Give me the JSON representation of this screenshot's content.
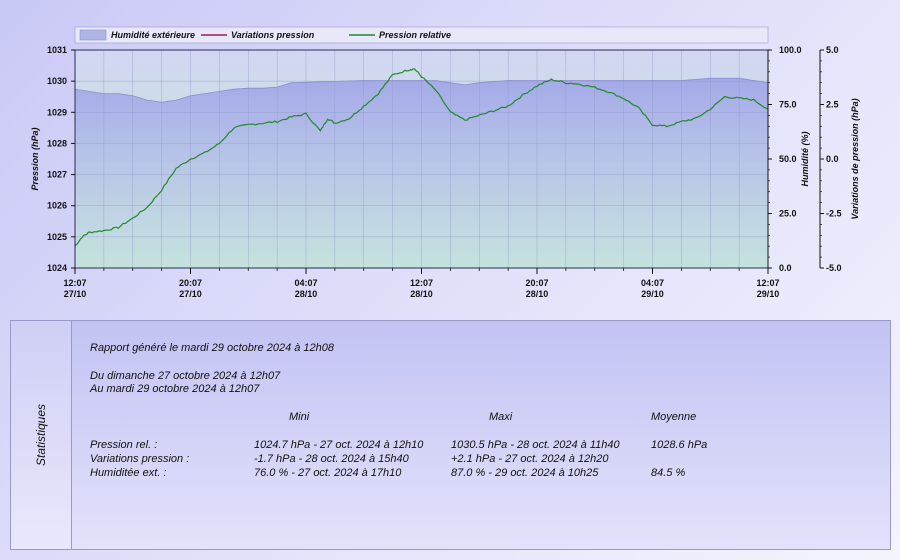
{
  "chart_data": {
    "type": "line",
    "legend": {
      "placement": "top-left",
      "entries": [
        {
          "name": "Humidité extérieure",
          "type": "area",
          "fill": "#b0b6e4",
          "stroke": "#8a90d0"
        },
        {
          "name": "Variations pression",
          "type": "line",
          "color": "#a01850"
        },
        {
          "name": "Pression relative",
          "type": "line",
          "color": "#23882a"
        }
      ]
    },
    "x_ticks": [
      {
        "time": "12:07",
        "date": "27/10"
      },
      {
        "time": "20:07",
        "date": "27/10"
      },
      {
        "time": "04:07",
        "date": "28/10"
      },
      {
        "time": "12:07",
        "date": "28/10"
      },
      {
        "time": "20:07",
        "date": "28/10"
      },
      {
        "time": "04:07",
        "date": "29/10"
      },
      {
        "time": "12:07",
        "date": "29/10"
      }
    ],
    "x_hours": [
      0,
      48
    ],
    "y_left": {
      "label": "Pression (hPa)",
      "range": [
        1024,
        1031
      ],
      "ticks": [
        "1024",
        "1025",
        "1026",
        "1027",
        "1028",
        "1029",
        "1030",
        "1031"
      ]
    },
    "y_right1": {
      "label": "Humidité (%)",
      "range": [
        0,
        100
      ],
      "ticks": [
        "0.0",
        "25.0",
        "50.0",
        "75.0",
        "100.0"
      ]
    },
    "y_right2": {
      "label": "Variations de pression (hPa)",
      "range": [
        -5,
        5
      ],
      "ticks": [
        "-5.0",
        "-2.5",
        "0.0",
        "2.5",
        "5.0"
      ]
    },
    "grid": true,
    "series": [
      {
        "name": "Pression relative",
        "axis": "left",
        "color": "#23882a",
        "points": [
          [
            0,
            1024.7
          ],
          [
            0.5,
            1025.0
          ],
          [
            1,
            1025.15
          ],
          [
            2,
            1025.2
          ],
          [
            3,
            1025.3
          ],
          [
            4,
            1025.6
          ],
          [
            5,
            1025.95
          ],
          [
            6,
            1026.5
          ],
          [
            7,
            1027.2
          ],
          [
            8,
            1027.5
          ],
          [
            9,
            1027.7
          ],
          [
            10,
            1028.0
          ],
          [
            11,
            1028.5
          ],
          [
            12,
            1028.6
          ],
          [
            13,
            1028.65
          ],
          [
            14,
            1028.7
          ],
          [
            15,
            1028.85
          ],
          [
            16,
            1028.95
          ],
          [
            17,
            1028.4
          ],
          [
            17.5,
            1028.8
          ],
          [
            18,
            1028.65
          ],
          [
            19,
            1028.8
          ],
          [
            20,
            1029.2
          ],
          [
            21,
            1029.6
          ],
          [
            22,
            1030.2
          ],
          [
            23,
            1030.35
          ],
          [
            23.5,
            1030.4
          ],
          [
            24,
            1030.15
          ],
          [
            25,
            1029.7
          ],
          [
            26,
            1029.0
          ],
          [
            27,
            1028.75
          ],
          [
            28,
            1028.9
          ],
          [
            29,
            1029.05
          ],
          [
            30,
            1029.2
          ],
          [
            31,
            1029.55
          ],
          [
            32,
            1029.85
          ],
          [
            33,
            1030.05
          ],
          [
            34,
            1029.95
          ],
          [
            35,
            1029.9
          ],
          [
            36,
            1029.8
          ],
          [
            37,
            1029.65
          ],
          [
            38,
            1029.45
          ],
          [
            39,
            1029.15
          ],
          [
            40,
            1028.6
          ],
          [
            41,
            1028.55
          ],
          [
            42,
            1028.7
          ],
          [
            43,
            1028.8
          ],
          [
            44,
            1029.1
          ],
          [
            45,
            1029.5
          ],
          [
            46,
            1029.45
          ],
          [
            47,
            1029.4
          ],
          [
            48,
            1029.1
          ]
        ]
      },
      {
        "name": "Humidité extérieure",
        "axis": "right1",
        "color": "#8a90d0",
        "points": [
          [
            0,
            82
          ],
          [
            1,
            81
          ],
          [
            2,
            80
          ],
          [
            3,
            80
          ],
          [
            4,
            79
          ],
          [
            5,
            77
          ],
          [
            6,
            76
          ],
          [
            7,
            77
          ],
          [
            8,
            79
          ],
          [
            9,
            80
          ],
          [
            10,
            81
          ],
          [
            11,
            82
          ],
          [
            12,
            82.5
          ],
          [
            13,
            82.5
          ],
          [
            14,
            83
          ],
          [
            15,
            85
          ],
          [
            20,
            86
          ],
          [
            25,
            86
          ],
          [
            26,
            85
          ],
          [
            27,
            84
          ],
          [
            28,
            85
          ],
          [
            30,
            86
          ],
          [
            36,
            86
          ],
          [
            40,
            86
          ],
          [
            42,
            86
          ],
          [
            44,
            87
          ],
          [
            46,
            87
          ],
          [
            48,
            85
          ]
        ]
      }
    ]
  },
  "stats": {
    "side_label": "Statistiques",
    "report_line": "Rapport généré le mardi 29 octobre 2024 à 12h08",
    "range_from": "Du dimanche 27 octobre 2024 à 12h07",
    "range_to": "Au mardi 29 octobre 2024 à 12h07",
    "headers": {
      "min": "Mini",
      "max": "Maxi",
      "avg": "Moyenne"
    },
    "rows": [
      {
        "label": "Pression rel. :",
        "min": "1024.7 hPa - 27 oct. 2024 à 12h10",
        "max": "1030.5 hPa - 28 oct. 2024 à 11h40",
        "avg": "1028.6 hPa"
      },
      {
        "label": "Variations pression :",
        "min": "-1.7 hPa - 28 oct. 2024 à 15h40",
        "max": "+2.1 hPa - 27 oct. 2024 à 12h20",
        "avg": ""
      },
      {
        "label": "Humiditée ext. :",
        "min": "76.0 % - 27 oct. 2024 à 17h10",
        "max": "87.0 % - 29 oct. 2024 à 10h25",
        "avg": "84.5 %"
      }
    ]
  }
}
